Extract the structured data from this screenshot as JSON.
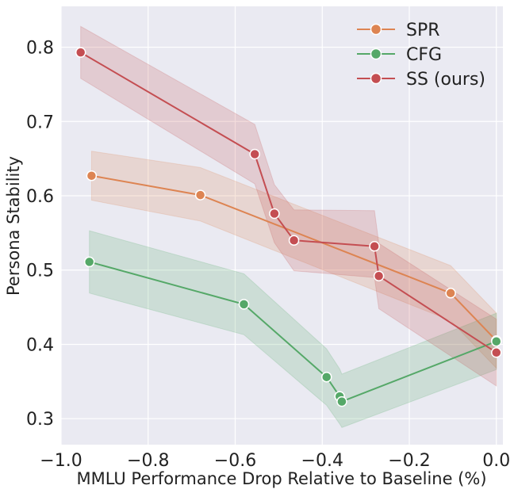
{
  "chart_data": {
    "type": "line",
    "title": "",
    "xlabel": "MMLU Performance Drop Relative to Baseline (%)",
    "ylabel": "Persona Stability",
    "xlim": [
      -1.0,
      0.015
    ],
    "ylim": [
      0.265,
      0.855
    ],
    "xticks": [
      -1.0,
      -0.8,
      -0.6,
      -0.4,
      -0.2,
      0.0
    ],
    "xtick_labels": [
      "−1.0",
      "−0.8",
      "−0.6",
      "−0.4",
      "−0.2",
      "0.0"
    ],
    "yticks": [
      0.3,
      0.4,
      0.5,
      0.6,
      0.7,
      0.8
    ],
    "ytick_labels": [
      "0.3",
      "0.4",
      "0.5",
      "0.6",
      "0.7",
      "0.8"
    ],
    "grid": true,
    "legend_position": "top-right",
    "series": [
      {
        "name": "SPR",
        "color": "#dd8452",
        "x": [
          -0.93,
          -0.68,
          -0.105,
          0.0
        ],
        "y": [
          0.627,
          0.601,
          0.469,
          0.405
        ],
        "lower": [
          0.594,
          0.566,
          0.432,
          0.368
        ],
        "upper": [
          0.66,
          0.638,
          0.506,
          0.442
        ]
      },
      {
        "name": "CFG",
        "color": "#55a868",
        "x": [
          -0.935,
          -0.58,
          -0.39,
          -0.36,
          -0.355,
          0.0
        ],
        "y": [
          0.511,
          0.454,
          0.356,
          0.33,
          0.323,
          0.404
        ],
        "lower": [
          0.469,
          0.413,
          0.318,
          0.293,
          0.288,
          0.366
        ],
        "upper": [
          0.553,
          0.495,
          0.394,
          0.367,
          0.36,
          0.442
        ]
      },
      {
        "name": "SS (ours)",
        "color": "#c44e52",
        "x": [
          -0.955,
          -0.555,
          -0.51,
          -0.465,
          -0.28,
          -0.27,
          0.0
        ],
        "y": [
          0.793,
          0.656,
          0.576,
          0.54,
          0.532,
          0.492,
          0.389
        ],
        "lower": [
          0.758,
          0.616,
          0.537,
          0.499,
          0.49,
          0.448,
          0.344
        ],
        "upper": [
          0.828,
          0.696,
          0.615,
          0.581,
          0.58,
          0.536,
          0.434
        ]
      }
    ]
  }
}
